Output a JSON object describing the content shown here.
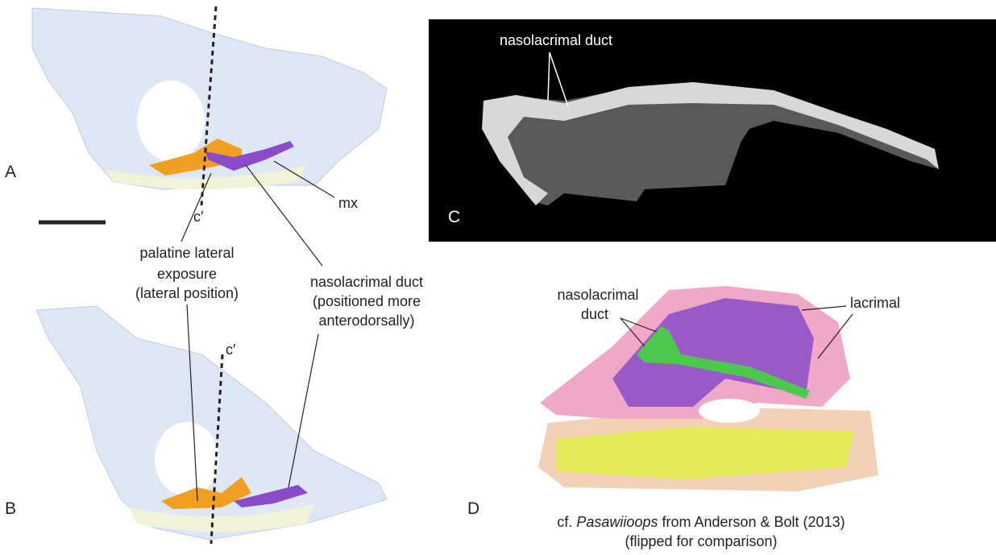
{
  "panel_a": {
    "label": "A",
    "section_label": "c′",
    "annotation": "mx"
  },
  "panel_b": {
    "label": "B",
    "section_label": "c′",
    "palatine": {
      "lines": [
        "palatine lateral",
        "exposure"
      ],
      "note": "(lateral position)"
    },
    "duct": {
      "lines": [
        "nasolacrimal duct"
      ],
      "note": [
        "(positioned more",
        "anterodorsally)"
      ]
    }
  },
  "panel_c": {
    "label": "C",
    "annotation": "nasolacrimal duct"
  },
  "panel_d": {
    "label": "D",
    "duct": [
      "nasolacrimal",
      "duct"
    ],
    "lacrimal": "lacrimal",
    "caption": {
      "prefix": "cf. ",
      "taxon": "Pasawiioops",
      "suffix": " from Anderson & Bolt (2013)",
      "note": "(flipped for comparison)"
    }
  }
}
